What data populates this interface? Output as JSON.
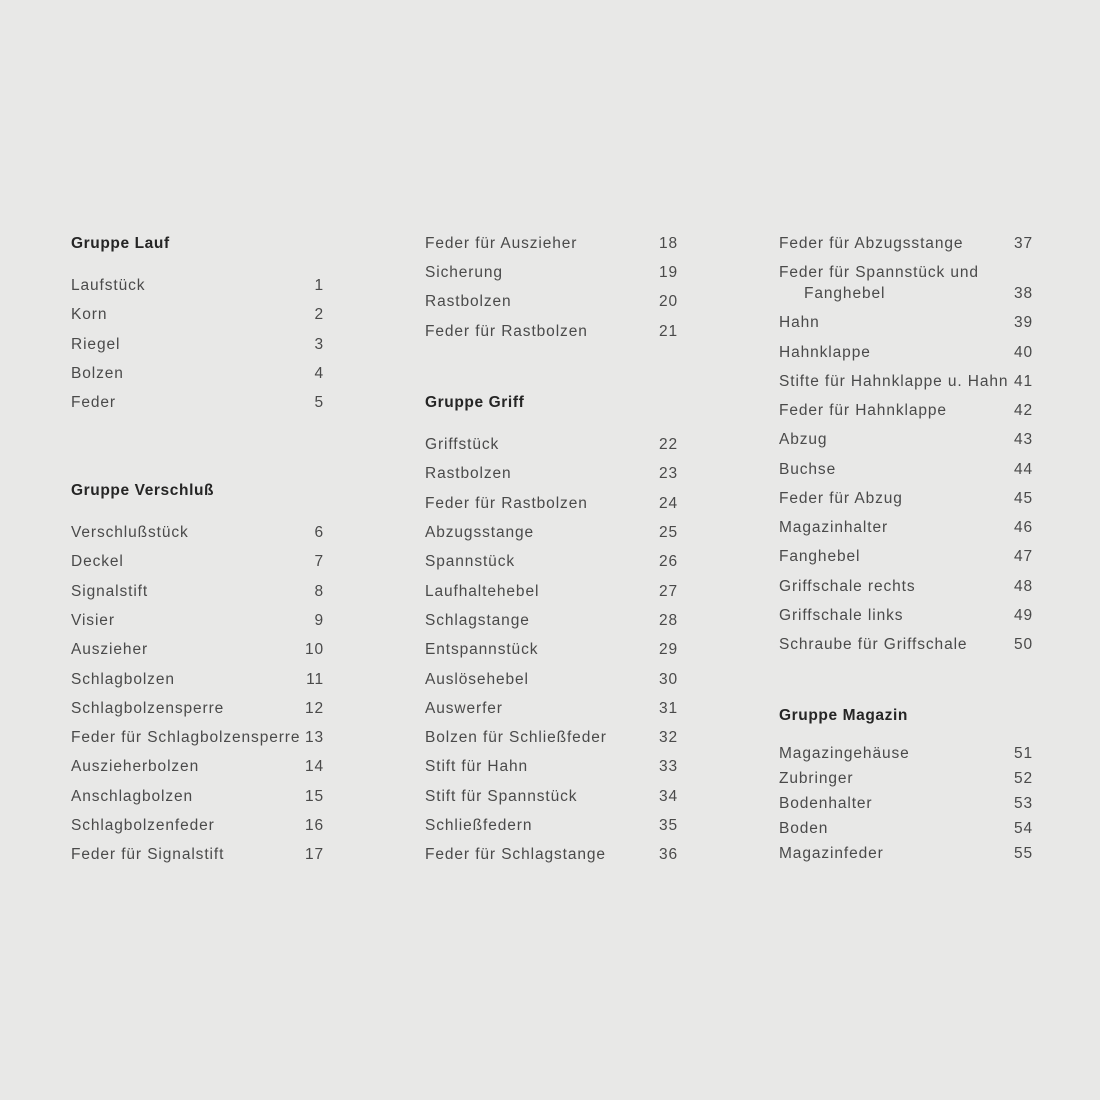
{
  "columns": [
    [
      {
        "type": "heading",
        "text": "Gruppe Lauf"
      },
      {
        "type": "item",
        "text": "Laufstück",
        "number": "1"
      },
      {
        "type": "item",
        "text": "Korn",
        "number": "2"
      },
      {
        "type": "item",
        "text": "Riegel",
        "number": "3"
      },
      {
        "type": "item",
        "text": "Bolzen",
        "number": "4"
      },
      {
        "type": "item",
        "text": "Feder",
        "number": "5"
      },
      {
        "type": "heading",
        "text": "Gruppe Verschluß"
      },
      {
        "type": "item",
        "text": "Verschlußstück",
        "number": "6"
      },
      {
        "type": "item",
        "text": "Deckel",
        "number": "7"
      },
      {
        "type": "item",
        "text": "Signalstift",
        "number": "8"
      },
      {
        "type": "item",
        "text": "Visier",
        "number": "9"
      },
      {
        "type": "item",
        "text": "Auszieher",
        "number": "10"
      },
      {
        "type": "item",
        "text": "Schlagbolzen",
        "number": "11"
      },
      {
        "type": "item",
        "text": "Schlagbolzensperre",
        "number": "12"
      },
      {
        "type": "item",
        "text": "Feder für Schlagbolzensperre",
        "number": "13"
      },
      {
        "type": "item",
        "text": "Auszieherbolzen",
        "number": "14"
      },
      {
        "type": "item",
        "text": "Anschlagbolzen",
        "number": "15"
      },
      {
        "type": "item",
        "text": "Schlagbolzenfeder",
        "number": "16"
      },
      {
        "type": "item",
        "text": "Feder für Signalstift",
        "number": "17"
      }
    ],
    [
      {
        "type": "item",
        "text": "Feder für Auszieher",
        "number": "18"
      },
      {
        "type": "item",
        "text": "Sicherung",
        "number": "19"
      },
      {
        "type": "item",
        "text": "Rastbolzen",
        "number": "20"
      },
      {
        "type": "item",
        "text": "Feder für Rastbolzen",
        "number": "21"
      },
      {
        "type": "heading",
        "text": "Gruppe Griff"
      },
      {
        "type": "item",
        "text": "Griffstück",
        "number": "22"
      },
      {
        "type": "item",
        "text": "Rastbolzen",
        "number": "23"
      },
      {
        "type": "item",
        "text": "Feder für Rastbolzen",
        "number": "24"
      },
      {
        "type": "item",
        "text": "Abzugsstange",
        "number": "25"
      },
      {
        "type": "item",
        "text": "Spannstück",
        "number": "26"
      },
      {
        "type": "item",
        "text": "Laufhaltehebel",
        "number": "27"
      },
      {
        "type": "item",
        "text": "Schlagstange",
        "number": "28"
      },
      {
        "type": "item",
        "text": "Entspannstück",
        "number": "29"
      },
      {
        "type": "item",
        "text": "Auslösehebel",
        "number": "30"
      },
      {
        "type": "item",
        "text": "Auswerfer",
        "number": "31"
      },
      {
        "type": "item",
        "text": "Bolzen für Schließfeder",
        "number": "32"
      },
      {
        "type": "item",
        "text": "Stift für Hahn",
        "number": "33"
      },
      {
        "type": "item",
        "text": "Stift für Spannstück",
        "number": "34"
      },
      {
        "type": "item",
        "text": "Schließfedern",
        "number": "35"
      },
      {
        "type": "item",
        "text": "Feder für Schlagstange",
        "number": "36"
      }
    ],
    [
      {
        "type": "item",
        "text": "Feder für Abzugsstange",
        "number": "37"
      },
      {
        "type": "item",
        "text": "Feder für Spannstück und",
        "text2": "Fanghebel",
        "number": "38"
      },
      {
        "type": "item",
        "text": "Hahn",
        "number": "39"
      },
      {
        "type": "item",
        "text": "Hahnklappe",
        "number": "40"
      },
      {
        "type": "item",
        "text": "Stifte für Hahnklappe u. Hahn",
        "number": "41"
      },
      {
        "type": "item",
        "text": "Feder für Hahnklappe",
        "number": "42"
      },
      {
        "type": "item",
        "text": "Abzug",
        "number": "43"
      },
      {
        "type": "item",
        "text": "Buchse",
        "number": "44"
      },
      {
        "type": "item",
        "text": "Feder für Abzug",
        "number": "45"
      },
      {
        "type": "item",
        "text": "Magazinhalter",
        "number": "46"
      },
      {
        "type": "item",
        "text": "Fanghebel",
        "number": "47"
      },
      {
        "type": "item",
        "text": "Griffschale rechts",
        "number": "48"
      },
      {
        "type": "item",
        "text": "Griffschale links",
        "number": "49"
      },
      {
        "type": "item",
        "text": "Schraube für Griffschale",
        "number": "50"
      },
      {
        "type": "heading",
        "text": "Gruppe Magazin"
      },
      {
        "type": "item",
        "text": "Magazingehäuse",
        "number": "51"
      },
      {
        "type": "item",
        "text": "Zubringer",
        "number": "52"
      },
      {
        "type": "item",
        "text": "Bodenhalter",
        "number": "53"
      },
      {
        "type": "item",
        "text": "Boden",
        "number": "54"
      },
      {
        "type": "item",
        "text": "Magazinfeder",
        "number": "55"
      }
    ]
  ]
}
